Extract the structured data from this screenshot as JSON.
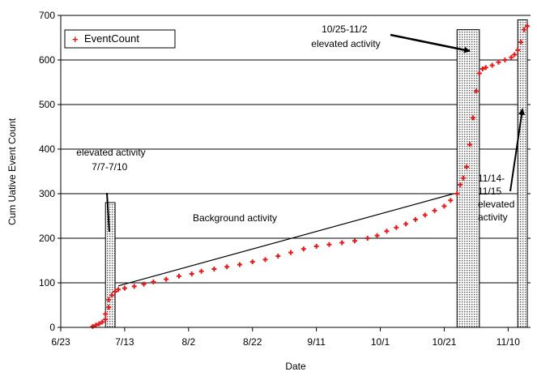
{
  "chart_data": {
    "type": "scatter",
    "title": "",
    "xlabel": "Date",
    "ylabel": "Cum Uative Event Count",
    "x_tick_labels": [
      "6/23",
      "7/13",
      "8/2",
      "8/22",
      "9/11",
      "10/1",
      "10/21",
      "11/10"
    ],
    "x_tick_dates": [
      "2003-06-23",
      "2003-07-13",
      "2003-08-02",
      "2003-08-22",
      "2003-09-11",
      "2003-10-01",
      "2003-10-21",
      "2003-11-10"
    ],
    "xlim": [
      "2003-06-23",
      "2003-11-17"
    ],
    "y_ticks": [
      0,
      100,
      200,
      300,
      400,
      500,
      600,
      700
    ],
    "ylim": [
      0,
      700
    ],
    "grid": "horizontal",
    "legend": {
      "placement": "top-left",
      "label": "EventCount"
    },
    "series": [
      {
        "name": "EventCount",
        "color": "#e41a1c",
        "marker": "plus",
        "points": [
          [
            "2003-07-03",
            2
          ],
          [
            "2003-07-04",
            5
          ],
          [
            "2003-07-05",
            8
          ],
          [
            "2003-07-06",
            12
          ],
          [
            "2003-07-07",
            18
          ],
          [
            "2003-07-07",
            30
          ],
          [
            "2003-07-08",
            45
          ],
          [
            "2003-07-08",
            62
          ],
          [
            "2003-07-09",
            72
          ],
          [
            "2003-07-10",
            80
          ],
          [
            "2003-07-11",
            85
          ],
          [
            "2003-07-13",
            88
          ],
          [
            "2003-07-16",
            92
          ],
          [
            "2003-07-19",
            97
          ],
          [
            "2003-07-22",
            102
          ],
          [
            "2003-07-26",
            108
          ],
          [
            "2003-07-30",
            115
          ],
          [
            "2003-08-03",
            120
          ],
          [
            "2003-08-06",
            126
          ],
          [
            "2003-08-10",
            131
          ],
          [
            "2003-08-14",
            136
          ],
          [
            "2003-08-18",
            141
          ],
          [
            "2003-08-22",
            147
          ],
          [
            "2003-08-26",
            152
          ],
          [
            "2003-08-30",
            160
          ],
          [
            "2003-09-03",
            168
          ],
          [
            "2003-09-07",
            176
          ],
          [
            "2003-09-11",
            182
          ],
          [
            "2003-09-15",
            186
          ],
          [
            "2003-09-19",
            190
          ],
          [
            "2003-09-23",
            194
          ],
          [
            "2003-09-27",
            200
          ],
          [
            "2003-09-30",
            206
          ],
          [
            "2003-10-03",
            216
          ],
          [
            "2003-10-06",
            224
          ],
          [
            "2003-10-09",
            232
          ],
          [
            "2003-10-12",
            242
          ],
          [
            "2003-10-15",
            252
          ],
          [
            "2003-10-18",
            262
          ],
          [
            "2003-10-21",
            272
          ],
          [
            "2003-10-23",
            285
          ],
          [
            "2003-10-25",
            300
          ],
          [
            "2003-10-26",
            320
          ],
          [
            "2003-10-27",
            335
          ],
          [
            "2003-10-28",
            360
          ],
          [
            "2003-10-29",
            410
          ],
          [
            "2003-10-30",
            470
          ],
          [
            "2003-10-31",
            530
          ],
          [
            "2003-11-01",
            570
          ],
          [
            "2003-11-02",
            580
          ],
          [
            "2003-11-03",
            583
          ],
          [
            "2003-11-05",
            588
          ],
          [
            "2003-11-07",
            595
          ],
          [
            "2003-11-09",
            600
          ],
          [
            "2003-11-11",
            606
          ],
          [
            "2003-11-12",
            612
          ],
          [
            "2003-11-13",
            622
          ],
          [
            "2003-11-14",
            640
          ],
          [
            "2003-11-15",
            668
          ],
          [
            "2003-11-16",
            676
          ]
        ]
      }
    ],
    "period_bands": [
      {
        "start": "2003-07-07",
        "end": "2003-07-10",
        "ymin": 0,
        "ymax": 280
      },
      {
        "start": "2003-10-25",
        "end": "2003-11-01",
        "ymin": 0,
        "ymax": 668
      },
      {
        "start": "2003-11-13",
        "end": "2003-11-16",
        "ymin": 0,
        "ymax": 690
      }
    ],
    "reference_lines": [
      {
        "from": [
          "2003-07-11",
          93
        ],
        "to": [
          "2003-10-24",
          300
        ]
      }
    ],
    "annotations": [
      {
        "lines": [
          "7/7-7/10",
          "elevated activity"
        ],
        "arrow_to": [
          "2003-07-09",
          200
        ]
      },
      {
        "lines": [
          "Background activity"
        ]
      },
      {
        "lines": [
          "10/25-11/2",
          "elevated activity"
        ],
        "arrow_to": [
          "2003-10-30",
          620
        ]
      },
      {
        "lines": [
          "11/14-",
          "11/15",
          "elevated",
          "activity"
        ],
        "arrow_to": [
          "2003-11-15",
          490
        ]
      }
    ]
  }
}
